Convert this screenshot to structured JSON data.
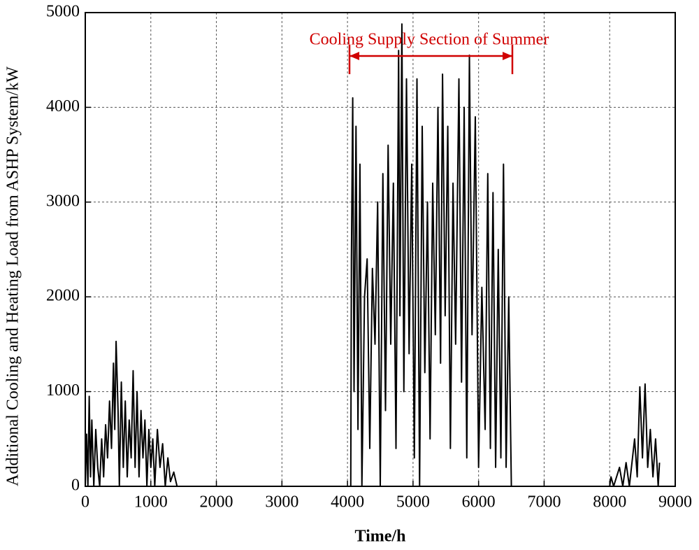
{
  "chart_data": {
    "type": "line",
    "x_label": "Time/h",
    "y_label": "Additional Cooling and Heating Load  from ASHP System/kW",
    "annotation": "Cooling Supply Section of Summer",
    "xlim": [
      0,
      9000
    ],
    "xticks": [
      0,
      1000,
      2000,
      3000,
      4000,
      5000,
      6000,
      7000,
      8000,
      9000
    ],
    "ylim": [
      0,
      5000
    ],
    "yticks": [
      0,
      1000,
      2000,
      3000,
      4000,
      5000
    ],
    "grid": true,
    "series": [
      {
        "color": "#000000",
        "x": [
          0,
          20,
          40,
          60,
          80,
          100,
          130,
          160,
          190,
          220,
          250,
          280,
          310,
          340,
          370,
          400,
          430,
          450,
          470,
          500,
          520,
          550,
          580,
          610,
          640,
          670,
          700,
          730,
          760,
          790,
          820,
          850,
          880,
          910,
          940,
          970,
          1000,
          1030,
          1060,
          1100,
          1140,
          1180,
          1220,
          1260,
          1300,
          1350,
          1400,
          1450,
          4050,
          4060,
          4080,
          4100,
          4130,
          4160,
          4190,
          4220,
          4260,
          4300,
          4340,
          4380,
          4420,
          4460,
          4500,
          4540,
          4580,
          4620,
          4660,
          4700,
          4740,
          4780,
          4800,
          4830,
          4860,
          4900,
          4940,
          4980,
          5020,
          5060,
          5100,
          5140,
          5180,
          5220,
          5260,
          5300,
          5340,
          5380,
          5420,
          5450,
          5490,
          5530,
          5570,
          5610,
          5650,
          5700,
          5740,
          5780,
          5820,
          5860,
          5900,
          5950,
          6000,
          6050,
          6100,
          6140,
          6180,
          6220,
          6260,
          6300,
          6340,
          6380,
          6420,
          6460,
          6500,
          6540,
          8000,
          8020,
          8060,
          8150,
          8200,
          8250,
          8300,
          8380,
          8420,
          8460,
          8500,
          8540,
          8580,
          8620,
          8660,
          8700,
          8740,
          8760
        ],
        "values": [
          0,
          550,
          0,
          950,
          100,
          700,
          0,
          600,
          200,
          0,
          500,
          100,
          650,
          300,
          900,
          400,
          1300,
          600,
          1530,
          800,
          0,
          1100,
          200,
          900,
          100,
          700,
          300,
          1220,
          200,
          1000,
          100,
          800,
          300,
          700,
          0,
          600,
          200,
          500,
          0,
          600,
          200,
          450,
          0,
          300,
          50,
          150,
          0,
          0,
          0,
          2400,
          4100,
          1000,
          3800,
          600,
          3400,
          0,
          2000,
          2400,
          400,
          2300,
          1500,
          3000,
          0,
          3300,
          800,
          3600,
          1500,
          3200,
          400,
          4600,
          1800,
          4880,
          1000,
          4300,
          1400,
          3400,
          300,
          4300,
          0,
          3800,
          1200,
          3000,
          500,
          3200,
          1600,
          4000,
          1300,
          4350,
          1800,
          3800,
          400,
          3200,
          1500,
          4300,
          1100,
          4000,
          300,
          4550,
          1600,
          3900,
          200,
          2100,
          600,
          3300,
          400,
          3100,
          200,
          2500,
          300,
          3400,
          200,
          2000,
          0,
          0,
          0,
          100,
          0,
          200,
          0,
          250,
          0,
          500,
          100,
          1050,
          300,
          1080,
          200,
          600,
          100,
          500,
          0,
          250
        ]
      }
    ]
  }
}
